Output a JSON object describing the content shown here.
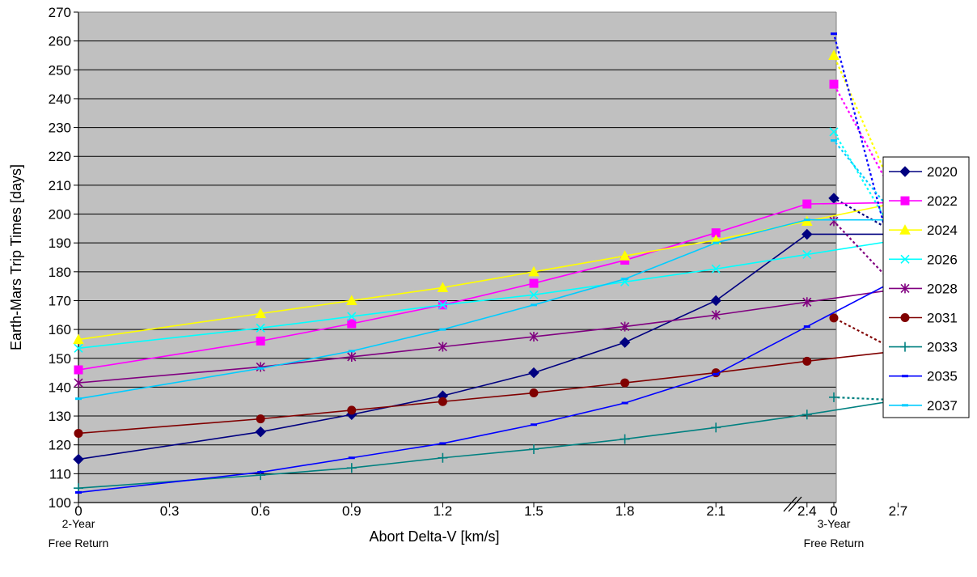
{
  "chart_data": {
    "type": "line",
    "xlabel": "Abort Delta-V [km/s]",
    "ylabel": "Earth-Mars Trip Times [days]",
    "ylim": [
      100,
      270
    ],
    "yticks": [
      100,
      110,
      120,
      130,
      140,
      150,
      160,
      170,
      180,
      190,
      200,
      210,
      220,
      230,
      240,
      250,
      260,
      270
    ],
    "x_tick_labels": [
      "0",
      "0.3",
      "0.6",
      "0.9",
      "1.2",
      "1.5",
      "1.8",
      "2.1",
      "2.4",
      "2.7",
      "0"
    ],
    "x_sub_labels": {
      "left": [
        "2-Year",
        "Free Return"
      ],
      "right": [
        "3-Year",
        "Free Return"
      ]
    },
    "axis_break": "between 2.7 and 3-Year Free Return",
    "grid": "horizontal",
    "plot_background": "#c0c0c0",
    "legend_position": "right",
    "x": [
      0,
      0.6,
      0.9,
      1.2,
      1.5,
      1.8,
      2.1,
      2.4,
      2.7
    ],
    "series": [
      {
        "name": "2020",
        "color": "#000080",
        "marker": "diamond",
        "values": [
          115,
          124.5,
          130.5,
          137,
          145,
          155.5,
          170,
          193,
          193
        ],
        "free_return_3yr": 205.5
      },
      {
        "name": "2022",
        "color": "#ff00ff",
        "marker": "square",
        "values": [
          146,
          156,
          162,
          168.5,
          176,
          184,
          193.5,
          203.5,
          204
        ],
        "free_return_3yr": 245
      },
      {
        "name": "2024",
        "color": "#ffff00",
        "marker": "triangle",
        "values": [
          156.5,
          165.5,
          170,
          174.5,
          180,
          185.5,
          191,
          197.5,
          204
        ],
        "free_return_3yr": 255
      },
      {
        "name": "2026",
        "color": "#00ffff",
        "marker": "x",
        "values": [
          153.5,
          160.5,
          164.5,
          168.5,
          172,
          176.5,
          181,
          186,
          191
        ],
        "free_return_3yr": 228.5
      },
      {
        "name": "2028",
        "color": "#800080",
        "marker": "star",
        "values": [
          141.5,
          147,
          150.5,
          154,
          157.5,
          161,
          165,
          169.5,
          174
        ],
        "free_return_3yr": 197.5
      },
      {
        "name": "2031",
        "color": "#800000",
        "marker": "circle",
        "values": [
          124,
          129,
          132,
          135,
          138,
          141.5,
          145,
          149,
          152.5
        ],
        "free_return_3yr": 164
      },
      {
        "name": "2033",
        "color": "#008080",
        "marker": "plus",
        "values": [
          105,
          109.5,
          112,
          115.5,
          118.5,
          122,
          126,
          130.5,
          135.5
        ],
        "free_return_3yr": 136.5
      },
      {
        "name": "2035",
        "color": "#0000ff",
        "marker": "dash",
        "values": [
          103.5,
          110.5,
          115.5,
          120.5,
          127,
          134.5,
          144.5,
          161,
          177.5
        ],
        "free_return_3yr": 262.5
      },
      {
        "name": "2037",
        "color": "#00ccff",
        "marker": "dash",
        "values": [
          136,
          146.5,
          152.5,
          160,
          168.5,
          177.5,
          190,
          198,
          198
        ],
        "free_return_3yr": 225.5
      }
    ]
  }
}
